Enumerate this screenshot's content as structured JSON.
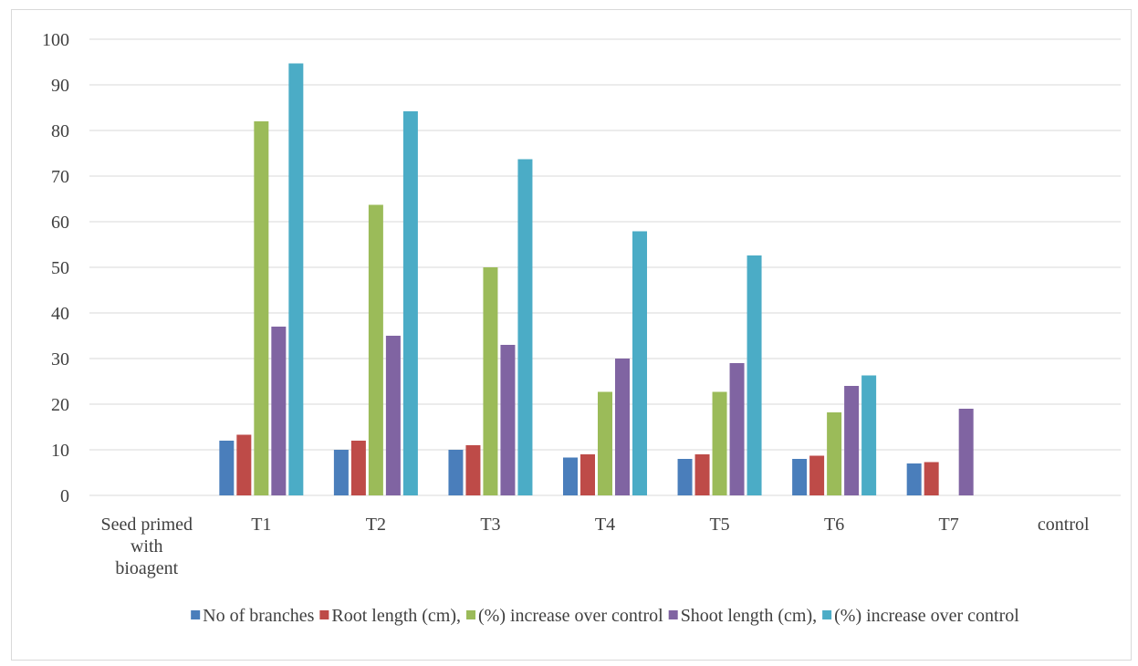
{
  "chart_data": {
    "type": "bar",
    "title": "",
    "xlabel": "",
    "ylabel": "",
    "ylim": [
      0,
      100
    ],
    "yticks": [
      0,
      10,
      20,
      30,
      40,
      50,
      60,
      70,
      80,
      90,
      100
    ],
    "grid": true,
    "legend_position": "bottom",
    "categories": [
      [
        "Seed primed",
        "with",
        "bioagent"
      ],
      [
        "T1"
      ],
      [
        "T2"
      ],
      [
        "T3"
      ],
      [
        "T4"
      ],
      [
        "T5"
      ],
      [
        "T6"
      ],
      [
        "T7"
      ],
      [
        "control"
      ]
    ],
    "series": [
      {
        "name": "No of branches",
        "color": "#4a7ebb",
        "values": [
          null,
          12,
          10,
          10,
          8.3,
          8,
          8,
          7,
          null
        ]
      },
      {
        "name": "Root length (cm),",
        "color": "#be4b48",
        "values": [
          null,
          13.3,
          12,
          11,
          9,
          9,
          8.7,
          7.3,
          null
        ]
      },
      {
        "name": "(%) increase over control",
        "color": "#9bbb59",
        "values": [
          null,
          82,
          63.7,
          50,
          22.7,
          22.7,
          18.2,
          null,
          null
        ]
      },
      {
        "name": "Shoot length (cm),",
        "color": "#8064a2",
        "values": [
          null,
          37,
          35,
          33,
          30,
          29,
          24,
          19,
          null
        ]
      },
      {
        "name": "(%) increase over control",
        "color": "#4bacc6",
        "values": [
          null,
          94.7,
          84.2,
          73.7,
          57.9,
          52.6,
          26.3,
          null,
          null
        ]
      }
    ]
  }
}
